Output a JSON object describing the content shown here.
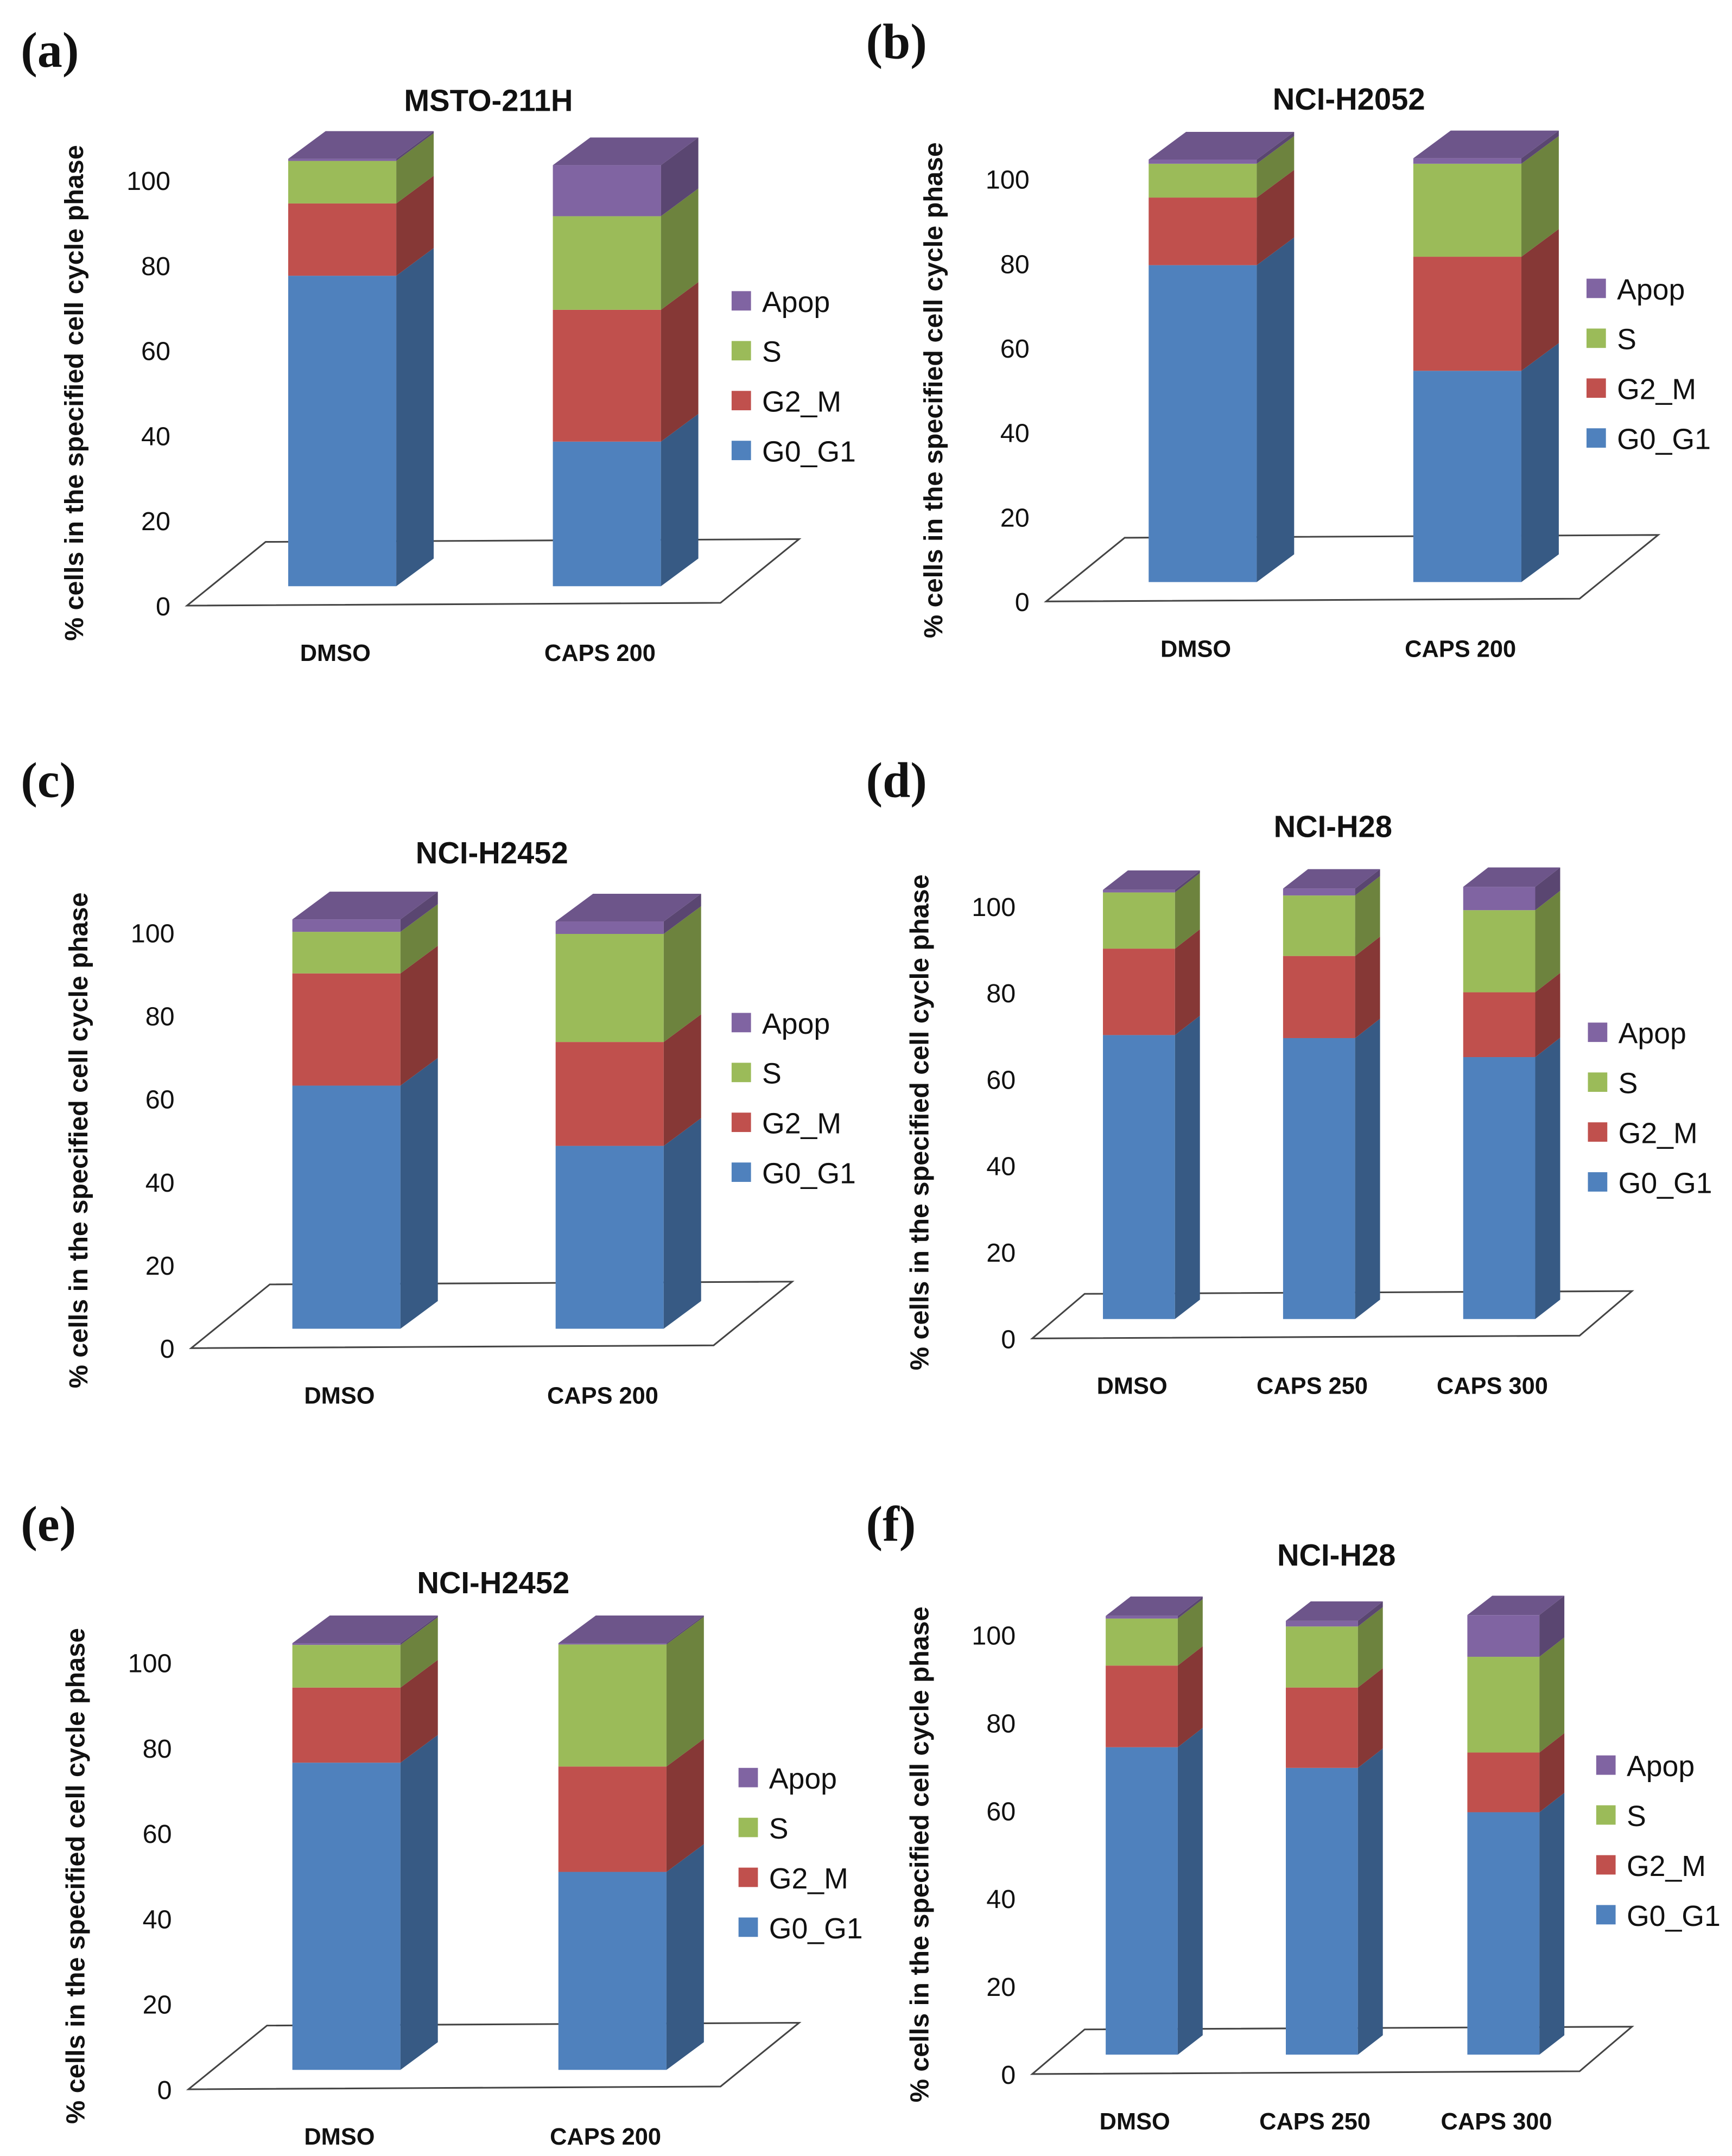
{
  "colors": {
    "G0_G1": "#4f81bd",
    "G2_M": "#c0504d",
    "S": "#9bbb59",
    "Apop": "#8064a2"
  },
  "chart_data": [
    {
      "panel_label": "(a)",
      "type": "bar",
      "stacked": true,
      "title": "MSTO-211H",
      "ylabel": "% cells in the specified cell cycle phase",
      "xlabel": "",
      "ylim": [
        0,
        100
      ],
      "yticks": [
        "0",
        "20",
        "40",
        "60",
        "80",
        "100"
      ],
      "legend": "right",
      "legend_order": [
        "Apop",
        "S",
        "G2_M",
        "G0_G1"
      ],
      "categories": [
        "DMSO",
        "CAPS 200"
      ],
      "series": [
        {
          "name": "G0_G1",
          "values": [
            73,
            34
          ]
        },
        {
          "name": "G2_M",
          "values": [
            17,
            31
          ]
        },
        {
          "name": "S",
          "values": [
            10,
            22
          ]
        },
        {
          "name": "Apop",
          "values": [
            0.5,
            12
          ]
        }
      ]
    },
    {
      "panel_label": "(b)",
      "type": "bar",
      "stacked": true,
      "title": "NCI-H2052",
      "ylabel": "% cells in the specified cell cycle phase",
      "xlabel": "",
      "ylim": [
        0,
        100
      ],
      "yticks": [
        "0",
        "20",
        "40",
        "60",
        "80",
        "100"
      ],
      "legend": "right",
      "legend_order": [
        "Apop",
        "S",
        "G2_M",
        "G0_G1"
      ],
      "categories": [
        "DMSO",
        "CAPS 200"
      ],
      "series": [
        {
          "name": "G0_G1",
          "values": [
            75,
            50
          ]
        },
        {
          "name": "G2_M",
          "values": [
            16,
            27
          ]
        },
        {
          "name": "S",
          "values": [
            8,
            22
          ]
        },
        {
          "name": "Apop",
          "values": [
            1,
            1.3
          ]
        }
      ]
    },
    {
      "panel_label": "(c)",
      "type": "bar",
      "stacked": true,
      "title": "NCI-H2452",
      "ylabel": "% cells in the specified cell cycle phase",
      "xlabel": "",
      "ylim": [
        0,
        100
      ],
      "yticks": [
        "0",
        "20",
        "40",
        "60",
        "80",
        "100"
      ],
      "legend": "right",
      "legend_order": [
        "Apop",
        "S",
        "G2_M",
        "G0_G1"
      ],
      "categories": [
        "DMSO",
        "CAPS 200"
      ],
      "series": [
        {
          "name": "G0_G1",
          "values": [
            58.5,
            44
          ]
        },
        {
          "name": "G2_M",
          "values": [
            27,
            25
          ]
        },
        {
          "name": "S",
          "values": [
            10,
            26
          ]
        },
        {
          "name": "Apop",
          "values": [
            3,
            3
          ]
        }
      ]
    },
    {
      "panel_label": "(d)",
      "type": "bar",
      "stacked": true,
      "title": "NCI-H28",
      "ylabel": "% cells in the specified cell cycle phase",
      "xlabel": "",
      "ylim": [
        0,
        100
      ],
      "yticks": [
        "0",
        "20",
        "40",
        "60",
        "80",
        "100"
      ],
      "legend": "right",
      "legend_order": [
        "Apop",
        "S",
        "G2_M",
        "G0_G1"
      ],
      "categories": [
        "DMSO",
        "CAPS 250",
        "CAPS 300"
      ],
      "series": [
        {
          "name": "G0_G1",
          "values": [
            65.7,
            65,
            60.6
          ]
        },
        {
          "name": "G2_M",
          "values": [
            20,
            19,
            15
          ]
        },
        {
          "name": "S",
          "values": [
            13,
            14,
            19
          ]
        },
        {
          "name": "Apop",
          "values": [
            0.6,
            1.6,
            5.4
          ]
        }
      ]
    },
    {
      "panel_label": "(e)",
      "type": "bar",
      "stacked": true,
      "title": "NCI-H2452",
      "ylabel": "% cells in the specified cell cycle phase",
      "xlabel": "",
      "ylim": [
        0,
        100
      ],
      "yticks": [
        "0",
        "20",
        "40",
        "60",
        "80",
        "100"
      ],
      "legend": "right",
      "legend_order": [
        "Apop",
        "S",
        "G2_M",
        "G0_G1"
      ],
      "categories": [
        "DMSO",
        "CAPS 200"
      ],
      "series": [
        {
          "name": "G0_G1",
          "values": [
            72,
            46.4
          ]
        },
        {
          "name": "G2_M",
          "values": [
            17.6,
            24.7
          ]
        },
        {
          "name": "S",
          "values": [
            10,
            28.6
          ]
        },
        {
          "name": "Apop",
          "values": [
            0.4,
            0.3
          ]
        }
      ]
    },
    {
      "panel_label": "(f)",
      "type": "bar",
      "stacked": true,
      "title": "NCI-H28",
      "ylabel": "% cells in the specified cell cycle phase",
      "xlabel": "",
      "ylim": [
        0,
        100
      ],
      "yticks": [
        "0",
        "20",
        "40",
        "60",
        "80",
        "100"
      ],
      "legend": "right",
      "legend_order": [
        "Apop",
        "S",
        "G2_M",
        "G0_G1"
      ],
      "categories": [
        "DMSO",
        "CAPS 250",
        "CAPS 300"
      ],
      "series": [
        {
          "name": "G0_G1",
          "values": [
            70,
            65.3,
            55.2
          ]
        },
        {
          "name": "G2_M",
          "values": [
            18.6,
            18.3,
            13.6
          ]
        },
        {
          "name": "S",
          "values": [
            10.7,
            13.9,
            21.8
          ]
        },
        {
          "name": "Apop",
          "values": [
            0.6,
            1.3,
            9.5
          ]
        }
      ]
    }
  ]
}
